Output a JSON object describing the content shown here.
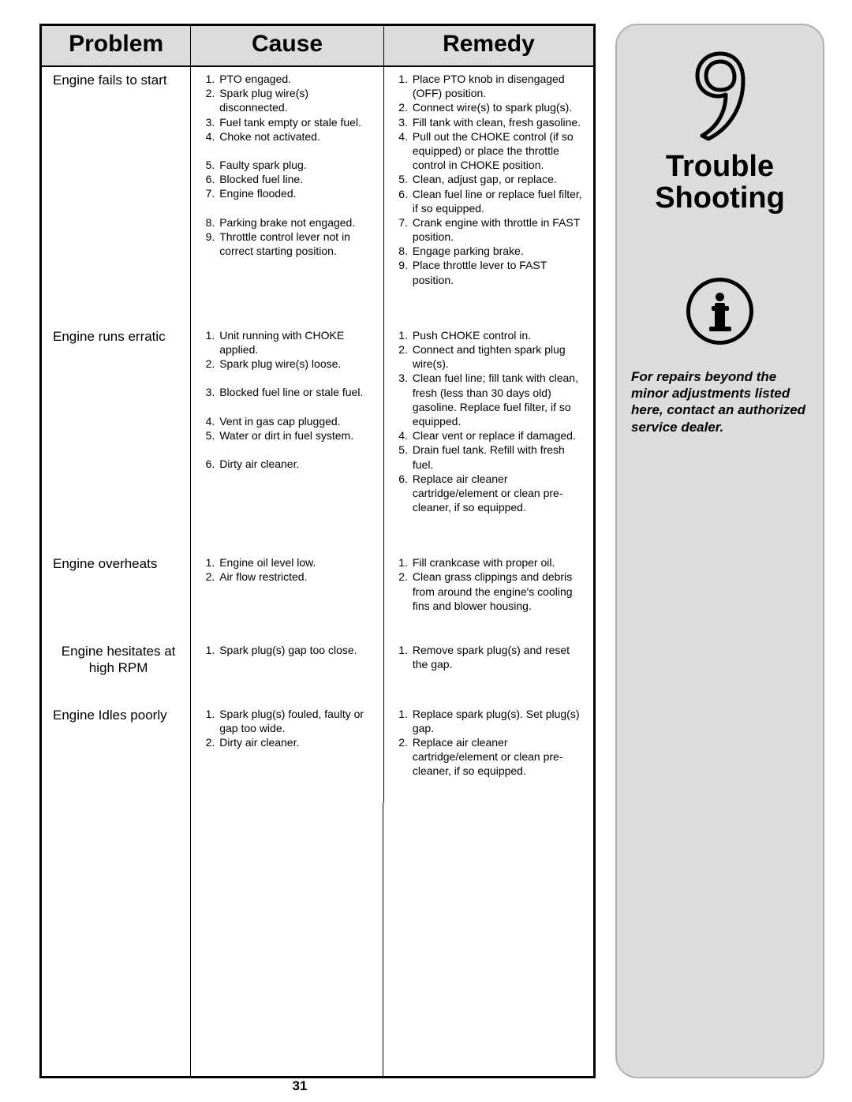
{
  "pageNumber": "31",
  "sidebar": {
    "chapterNumber": "9",
    "titleLine1": "Trouble",
    "titleLine2": "Shooting",
    "note": "For repairs beyond the minor adjustments listed here, contact an authorized service dealer."
  },
  "table": {
    "headers": {
      "problem": "Problem",
      "cause": "Cause",
      "remedy": "Remedy"
    },
    "rows": [
      {
        "problem": "Engine fails to start",
        "causes": [
          "PTO engaged.",
          "Spark plug wire(s) disconnected.",
          "Fuel tank empty or stale fuel.",
          "Choke not activated.",
          "Faulty spark plug.",
          "Blocked fuel line.",
          "Engine flooded.",
          "Parking brake not engaged.",
          "Throttle control lever not in correct starting position."
        ],
        "remedies": [
          "Place PTO knob in disengaged (OFF) position.",
          "Connect wire(s) to spark plug(s).",
          "Fill tank with clean, fresh gasoline.",
          "Pull out the CHOKE control (if so equipped) or place the throttle control in CHOKE position.",
          "Clean, adjust gap, or replace.",
          "Clean fuel line or replace fuel filter, if so equipped.",
          "Crank engine with throttle in FAST position.",
          "Engage parking brake.",
          "Place throttle lever to FAST position."
        ]
      },
      {
        "problem": "Engine runs erratic",
        "causes": [
          "Unit running with CHOKE applied.",
          "Spark plug wire(s) loose.",
          "Blocked fuel line or stale fuel.",
          "Vent in gas cap plugged.",
          "Water or dirt in fuel system.",
          "Dirty air cleaner."
        ],
        "remedies": [
          "Push CHOKE control in.",
          "Connect and tighten spark plug wire(s).",
          "Clean fuel line; fill tank with clean, fresh (less than 30 days old) gasoline. Replace fuel filter, if so equipped.",
          "Clear vent or replace if damaged.",
          "Drain fuel tank. Refill with fresh fuel.",
          "Replace air cleaner cartridge/element or clean pre-cleaner, if so equipped."
        ]
      },
      {
        "problem": "Engine overheats",
        "causes": [
          "Engine oil level low.",
          "Air flow restricted."
        ],
        "remedies": [
          "Fill crankcase with proper oil.",
          "Clean grass clippings and debris from around the engine's cooling fins and blower housing."
        ]
      },
      {
        "problem": "Engine hesitates at high RPM",
        "causes": [
          "Spark plug(s) gap too close."
        ],
        "remedies": [
          "Remove spark plug(s) and reset the gap."
        ]
      },
      {
        "problem": "Engine Idles poorly",
        "causes": [
          "Spark plug(s) fouled, faulty or gap too wide.",
          "Dirty air cleaner."
        ],
        "remedies": [
          "Replace spark plug(s). Set plug(s) gap.",
          "Replace air cleaner cartridge/element or clean pre-cleaner, if so equipped."
        ]
      }
    ]
  }
}
